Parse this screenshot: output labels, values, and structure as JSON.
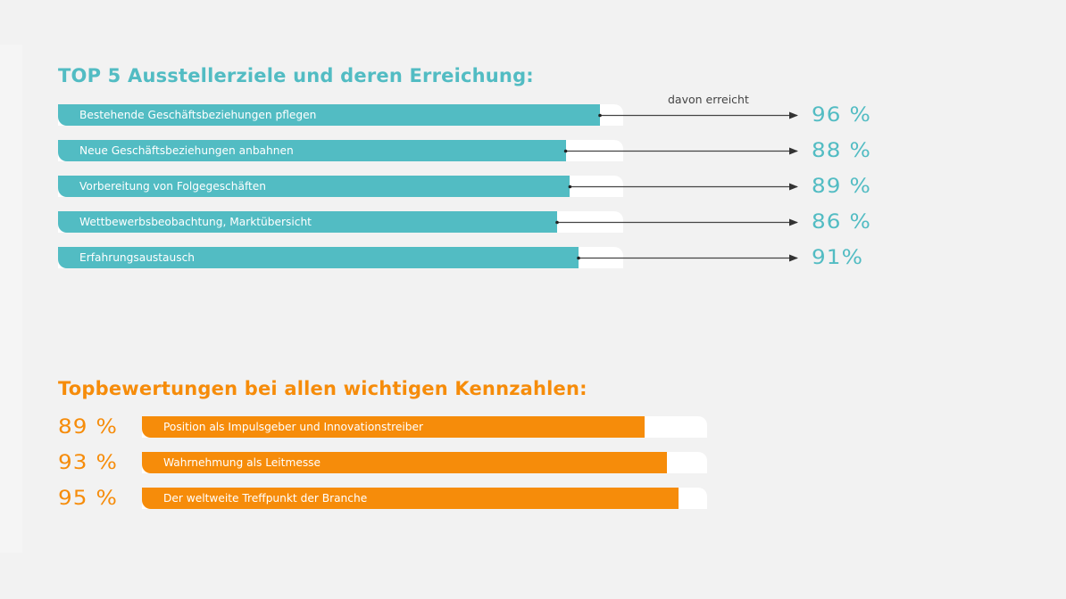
{
  "colors": {
    "background": "#f2f2f2",
    "teal": "#52bcc3",
    "orange": "#f68c0a",
    "track": "#ffffff",
    "arrow": "#333333"
  },
  "chart_data": [
    {
      "type": "bar",
      "orientation": "horizontal",
      "title": "TOP 5 Ausstellerziele und deren Erreichung:",
      "annotation": "davon erreicht",
      "categories": [
        "Bestehende Geschäftsbeziehungen pflegen",
        "Neue Geschäftsbeziehungen anbahnen",
        "Vorbereitung von Folgegeschäften",
        "Wettbewerbsbeobachtung, Marktübersicht",
        "Erfahrungsaustausch"
      ],
      "values": [
        96,
        88,
        89,
        86,
        91
      ],
      "value_labels": [
        "96 %",
        "88 %",
        "89 %",
        "86 %",
        "91%"
      ],
      "unit": "%",
      "value_range": [
        0,
        100
      ],
      "xlim_note": "bar fill shows value relative to track scale",
      "label_position": "right",
      "color": "#52bcc3"
    },
    {
      "type": "bar",
      "orientation": "horizontal",
      "title": "Topbewertungen bei allen wichtigen Kennzahlen:",
      "categories": [
        "Position als Impulsgeber und Innovationstreiber",
        "Wahrnehmung als Leitmesse",
        "Der weltweite Treffpunkt der Branche"
      ],
      "values": [
        89,
        93,
        95
      ],
      "value_labels": [
        "89 %",
        "93 %",
        "95 %"
      ],
      "unit": "%",
      "value_range": [
        0,
        100
      ],
      "label_position": "left",
      "color": "#f68c0a"
    }
  ]
}
